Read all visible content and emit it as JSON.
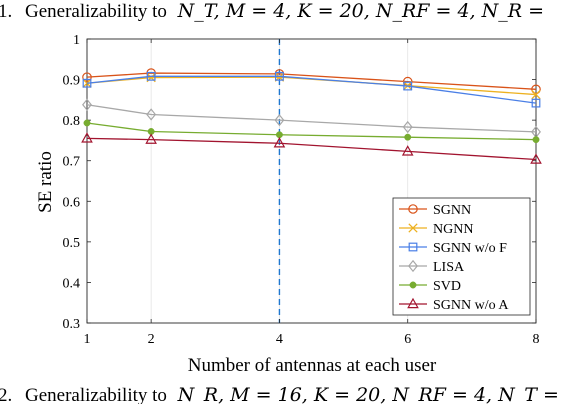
{
  "header_top": {
    "number": "1.",
    "text": "Generalizability to",
    "math": "N_T, M = 4, K = 20, N_RF = 4, N_R ="
  },
  "header_bottom": {
    "number": "2.",
    "text": "Generalizability to",
    "math": "N_R, M = 16, K = 20, N_RF = 4, N_T ="
  },
  "chart_data": {
    "type": "line",
    "title": "",
    "xlabel": "Number of antennas at each user",
    "ylabel": "SE ratio",
    "xlim": [
      1,
      8
    ],
    "ylim": [
      0.3,
      1.0
    ],
    "xticks": [
      1,
      2,
      4,
      6,
      8
    ],
    "xtick_labels": [
      "1",
      "2",
      "4",
      "6",
      "8"
    ],
    "yticks": [
      0.3,
      0.4,
      0.5,
      0.6,
      0.7,
      0.8,
      0.9,
      1.0
    ],
    "ytick_labels": [
      "0.3",
      "0.4",
      "0.5",
      "0.6",
      "0.7",
      "0.8",
      "0.9",
      "1"
    ],
    "grid": true,
    "legend_position": "bottom-right",
    "reference_line": {
      "x": 4,
      "style": "dashed",
      "color": "#1f77d0"
    },
    "x": [
      1,
      2,
      4,
      6,
      8
    ],
    "series": [
      {
        "name": "SGNN",
        "values": [
          0.906,
          0.916,
          0.914,
          0.895,
          0.876
        ],
        "color": "#d95319",
        "marker": "circle"
      },
      {
        "name": "NGNN",
        "values": [
          0.891,
          0.905,
          0.906,
          0.885,
          0.863
        ],
        "color": "#edb120",
        "marker": "x"
      },
      {
        "name": "SGNN w/o F",
        "values": [
          0.891,
          0.908,
          0.908,
          0.884,
          0.842
        ],
        "color": "#4a7fe6",
        "marker": "square"
      },
      {
        "name": "LISA",
        "values": [
          0.838,
          0.814,
          0.8,
          0.783,
          0.771
        ],
        "color": "#a8a8a8",
        "marker": "diamond"
      },
      {
        "name": "SVD",
        "values": [
          0.793,
          0.772,
          0.764,
          0.758,
          0.752
        ],
        "color": "#77ac30",
        "marker": "dot"
      },
      {
        "name": "SGNN w/o A",
        "values": [
          0.755,
          0.752,
          0.743,
          0.723,
          0.703
        ],
        "color": "#a2142f",
        "marker": "triangle"
      }
    ]
  }
}
